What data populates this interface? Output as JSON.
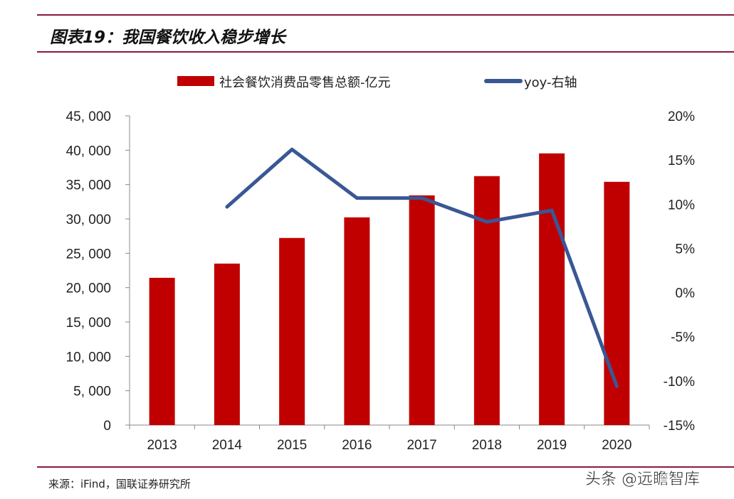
{
  "title": "图表19：我国餐饮收入稳步增长",
  "source": "来源：iFind，国联证券研究所",
  "watermark": "头条 @远瞻智库",
  "chart_data": {
    "type": "bar+line",
    "categories": [
      "2013",
      "2014",
      "2015",
      "2016",
      "2017",
      "2018",
      "2019",
      "2020"
    ],
    "series": [
      {
        "name": "社会餐饮消费品零售总额-亿元",
        "type": "bar",
        "axis": "left",
        "color": "#c00000",
        "values": [
          21430,
          23500,
          27230,
          30230,
          33430,
          36230,
          39540,
          35400
        ]
      },
      {
        "name": "yoy-右轴",
        "type": "line",
        "axis": "right",
        "color": "#3a5795",
        "values": [
          null,
          9.7,
          16.2,
          10.7,
          10.7,
          8.0,
          9.3,
          -10.6
        ]
      }
    ],
    "left_axis": {
      "ylim": [
        0,
        45000
      ],
      "ticks": [
        "0",
        "5, 000",
        "10, 000",
        "15, 000",
        "20, 000",
        "25, 000",
        "30, 000",
        "35, 000",
        "40, 000",
        "45, 000"
      ]
    },
    "right_axis": {
      "ylim": [
        -15,
        20
      ],
      "ticks": [
        "-15%",
        "-10%",
        "-5%",
        "0%",
        "5%",
        "10%",
        "15%",
        "20%"
      ]
    },
    "legend": "top",
    "grid": false
  }
}
